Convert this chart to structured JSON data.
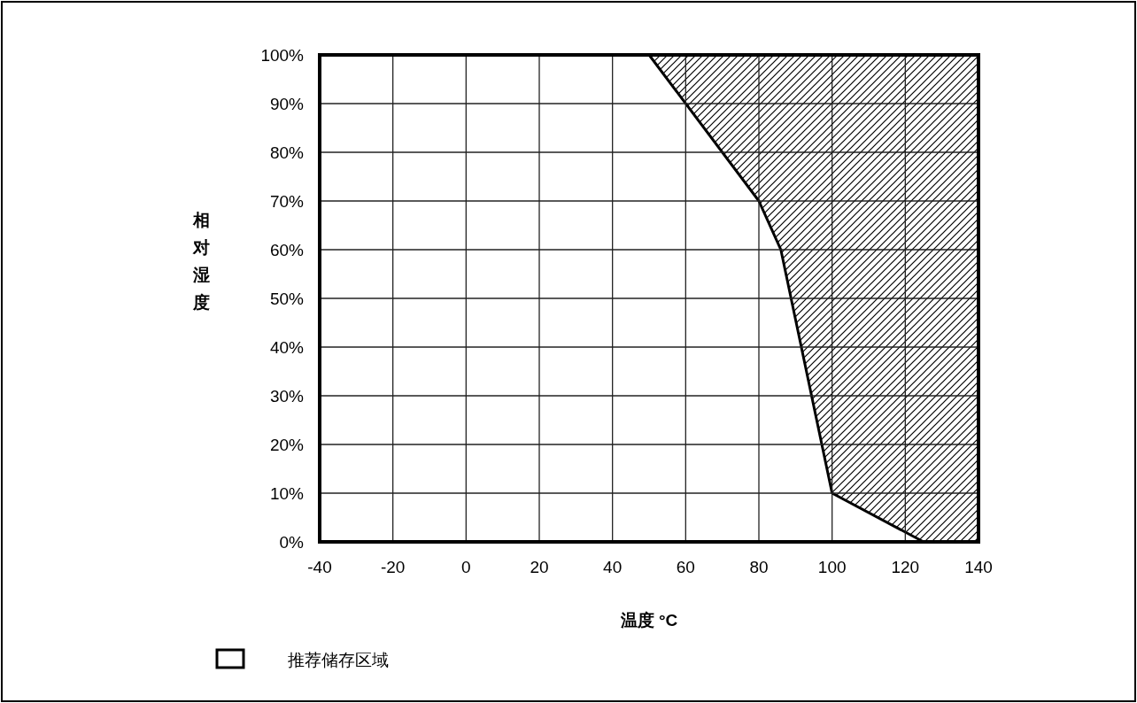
{
  "chart_data": {
    "type": "area",
    "xlabel": "温度 °C",
    "ylabel": "相对湿度",
    "xlim": [
      -40,
      140
    ],
    "ylim": [
      0,
      100
    ],
    "xticks": [
      -40,
      -20,
      0,
      20,
      40,
      60,
      80,
      100,
      120,
      140
    ],
    "yticks": [
      {
        "value": 0,
        "label": "0%"
      },
      {
        "value": 10,
        "label": "10%"
      },
      {
        "value": 20,
        "label": "20%"
      },
      {
        "value": 30,
        "label": "30%"
      },
      {
        "value": 40,
        "label": "40%"
      },
      {
        "value": 50,
        "label": "50%"
      },
      {
        "value": 60,
        "label": "60%"
      },
      {
        "value": 70,
        "label": "70%"
      },
      {
        "value": 80,
        "label": "80%"
      },
      {
        "value": 90,
        "label": "90%"
      },
      {
        "value": 100,
        "label": "100%"
      }
    ],
    "grid": true,
    "legend": "bottom",
    "series": [
      {
        "name": "推荐储存区域",
        "color": "#ffffff",
        "x": [
          -40,
          50,
          80,
          86,
          100,
          125
        ],
        "values": [
          100,
          100,
          70,
          60,
          10,
          0
        ]
      }
    ]
  }
}
